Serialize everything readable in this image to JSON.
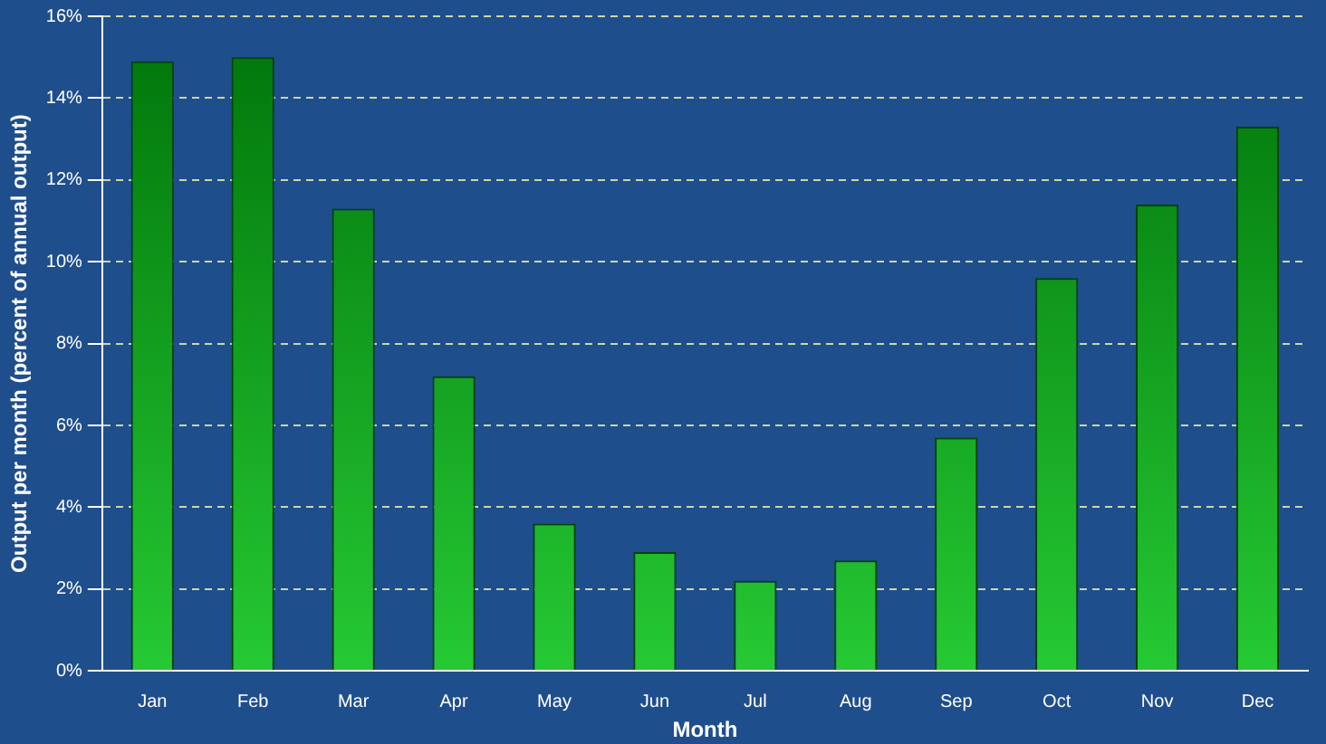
{
  "chart_data": {
    "type": "bar",
    "xlabel": "Month",
    "ylabel": "Output per month (percent of annual output)",
    "categories": [
      "Jan",
      "Feb",
      "Mar",
      "Apr",
      "May",
      "Jun",
      "Jul",
      "Aug",
      "Sep",
      "Oct",
      "Nov",
      "Dec"
    ],
    "values": [
      14.9,
      15.0,
      11.3,
      7.2,
      3.6,
      2.9,
      2.2,
      2.7,
      5.7,
      9.6,
      11.4,
      13.3
    ],
    "color": "#00c010",
    "ylim": [
      0,
      16
    ],
    "yticks": [
      {
        "value": 0,
        "label": "0%"
      },
      {
        "value": 2,
        "label": "2%"
      },
      {
        "value": 4,
        "label": "4%"
      },
      {
        "value": 6,
        "label": "6%"
      },
      {
        "value": 8,
        "label": "8%"
      },
      {
        "value": 10,
        "label": "10%"
      },
      {
        "value": 12,
        "label": "12%"
      },
      {
        "value": 14,
        "label": "14%"
      },
      {
        "value": 16,
        "label": "16%"
      }
    ],
    "grid": "y",
    "legend": false
  }
}
